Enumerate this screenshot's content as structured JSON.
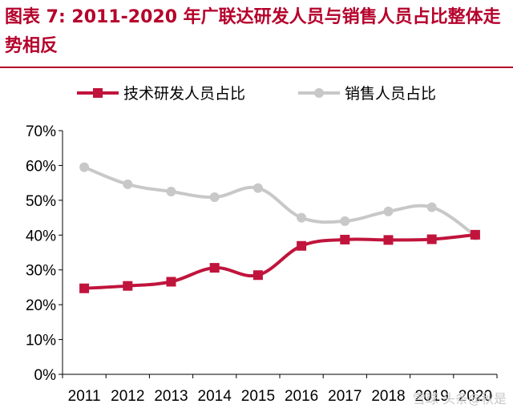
{
  "figure": {
    "title": "图表 7: 2011-2020 年广联达研发人员与销售人员占比整体走势相反",
    "watermark": "雪球 头条@秋是"
  },
  "chart_data": {
    "type": "line",
    "title": "",
    "xlabel": "",
    "ylabel": "",
    "x": [
      "2011",
      "2012",
      "2013",
      "2014",
      "2015",
      "2016",
      "2017",
      "2018",
      "2019",
      "2020"
    ],
    "ylim": [
      0,
      70
    ],
    "yticks": [
      0,
      10,
      20,
      30,
      40,
      50,
      60,
      70
    ],
    "ytick_labels": [
      "0%",
      "10%",
      "20%",
      "30%",
      "40%",
      "50%",
      "60%",
      "70%"
    ],
    "grid": false,
    "legend_position": "top",
    "series": [
      {
        "name": "技术研发人员占比",
        "color": "#c0143c",
        "marker": "square",
        "values": [
          24.7,
          25.4,
          26.6,
          30.6,
          28.5,
          36.9,
          38.7,
          38.6,
          38.8,
          40.1
        ]
      },
      {
        "name": "销售人员占比",
        "color": "#c8c8c8",
        "marker": "circle",
        "values": [
          59.5,
          54.6,
          52.5,
          50.9,
          53.5,
          45.0,
          44.0,
          46.8,
          48.0,
          39.9
        ]
      }
    ]
  }
}
